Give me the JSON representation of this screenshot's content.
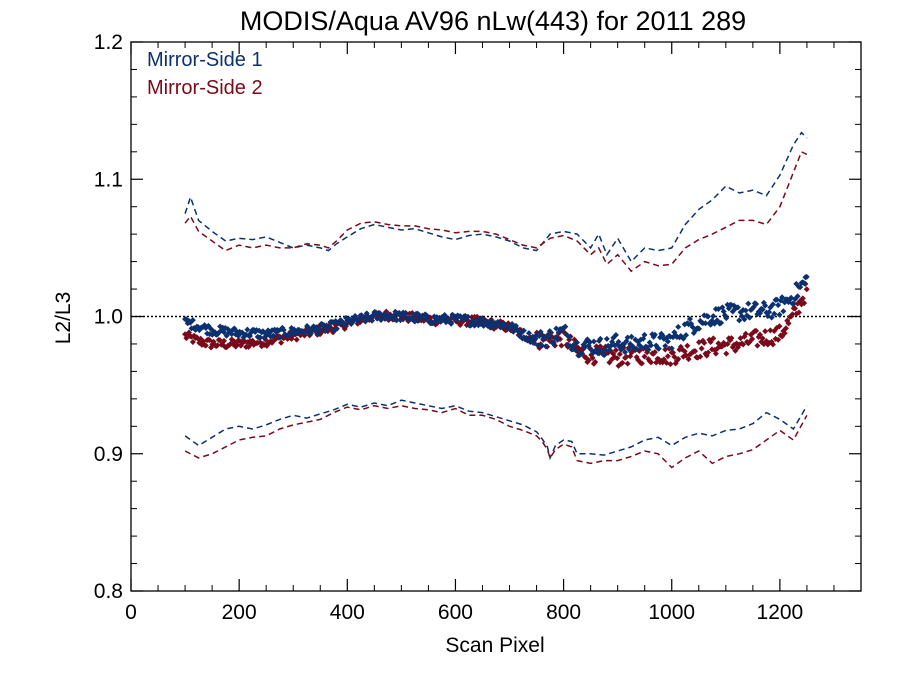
{
  "chart_data": {
    "type": "scatter",
    "title": "MODIS/Aqua AV96 nLw(443) for 2011 289",
    "xlabel": "Scan Pixel",
    "ylabel": "L2/L3",
    "xlim": [
      0,
      1350
    ],
    "ylim": [
      0.8,
      1.2
    ],
    "xticks": [
      "0",
      "200",
      "400",
      "600",
      "800",
      "1000",
      "1200"
    ],
    "xtick_values": [
      0,
      200,
      400,
      600,
      800,
      1000,
      1200
    ],
    "yticks": [
      "0.8",
      "0.9",
      "1.0",
      "1.1",
      "1.2"
    ],
    "ytick_values": [
      0.8,
      0.9,
      1.0,
      1.1,
      1.2
    ],
    "x_minor_step": 50,
    "y_minor_step": 0.02,
    "reference_line": 1.0,
    "legend": {
      "placement": "top-left"
    },
    "series": [
      {
        "name": "Mirror-Side 1",
        "color": "#0b3170",
        "marker": "diamond",
        "x": [
          100,
          125,
          150,
          175,
          200,
          225,
          250,
          275,
          300,
          325,
          350,
          375,
          400,
          425,
          450,
          475,
          500,
          525,
          550,
          575,
          600,
          625,
          650,
          675,
          700,
          725,
          750,
          775,
          800,
          825,
          850,
          875,
          900,
          925,
          950,
          975,
          1000,
          1025,
          1050,
          1075,
          1100,
          1125,
          1150,
          1175,
          1200,
          1225,
          1250
        ],
        "y": [
          0.996,
          0.993,
          0.99,
          0.989,
          0.988,
          0.988,
          0.987,
          0.988,
          0.989,
          0.99,
          0.991,
          0.993,
          0.996,
          0.998,
          1.0,
          1.001,
          1.0,
          0.999,
          0.998,
          0.998,
          0.998,
          0.997,
          0.996,
          0.995,
          0.993,
          0.987,
          0.983,
          0.985,
          0.989,
          0.978,
          0.979,
          0.978,
          0.981,
          0.979,
          0.982,
          0.981,
          0.983,
          0.991,
          0.996,
          1.0,
          1.002,
          1.003,
          1.004,
          1.004,
          1.007,
          1.015,
          1.027
        ],
        "upper_x": [
          100,
          110,
          125,
          150,
          175,
          200,
          225,
          250,
          275,
          300,
          325,
          350,
          365,
          380,
          400,
          425,
          450,
          475,
          500,
          525,
          550,
          575,
          600,
          625,
          650,
          675,
          700,
          725,
          750,
          775,
          800,
          825,
          850,
          865,
          880,
          900,
          925,
          950,
          975,
          1000,
          1025,
          1050,
          1075,
          1100,
          1125,
          1150,
          1175,
          1200,
          1225,
          1240,
          1250
        ],
        "upper_y": [
          1.075,
          1.087,
          1.07,
          1.062,
          1.055,
          1.057,
          1.056,
          1.058,
          1.054,
          1.05,
          1.052,
          1.05,
          1.048,
          1.053,
          1.058,
          1.064,
          1.067,
          1.065,
          1.063,
          1.064,
          1.061,
          1.058,
          1.056,
          1.059,
          1.06,
          1.058,
          1.055,
          1.05,
          1.048,
          1.06,
          1.062,
          1.06,
          1.05,
          1.06,
          1.045,
          1.057,
          1.04,
          1.05,
          1.048,
          1.05,
          1.067,
          1.078,
          1.085,
          1.095,
          1.09,
          1.092,
          1.088,
          1.103,
          1.125,
          1.134,
          1.13
        ],
        "lower_x": [
          100,
          125,
          150,
          175,
          200,
          225,
          250,
          275,
          300,
          325,
          350,
          375,
          400,
          425,
          450,
          475,
          500,
          525,
          550,
          575,
          600,
          625,
          650,
          675,
          700,
          725,
          750,
          760,
          770,
          775,
          785,
          800,
          815,
          825,
          850,
          875,
          900,
          925,
          950,
          975,
          1000,
          1025,
          1050,
          1075,
          1100,
          1125,
          1150,
          1175,
          1200,
          1225,
          1250
        ],
        "lower_y": [
          0.913,
          0.906,
          0.912,
          0.918,
          0.92,
          0.918,
          0.921,
          0.925,
          0.928,
          0.926,
          0.929,
          0.932,
          0.936,
          0.934,
          0.937,
          0.935,
          0.939,
          0.937,
          0.935,
          0.933,
          0.935,
          0.931,
          0.93,
          0.927,
          0.924,
          0.921,
          0.916,
          0.911,
          0.905,
          0.897,
          0.906,
          0.91,
          0.909,
          0.9,
          0.9,
          0.899,
          0.902,
          0.905,
          0.91,
          0.912,
          0.906,
          0.912,
          0.915,
          0.913,
          0.917,
          0.918,
          0.922,
          0.93,
          0.925,
          0.918,
          0.935
        ]
      },
      {
        "name": "Mirror-Side 2",
        "color": "#7a0a1a",
        "marker": "diamond",
        "x": [
          100,
          125,
          150,
          175,
          200,
          225,
          250,
          275,
          300,
          325,
          350,
          375,
          400,
          425,
          450,
          475,
          500,
          525,
          550,
          575,
          600,
          625,
          650,
          675,
          700,
          725,
          750,
          775,
          800,
          825,
          850,
          875,
          900,
          925,
          950,
          975,
          1000,
          1025,
          1050,
          1075,
          1100,
          1125,
          1150,
          1175,
          1200,
          1225,
          1250
        ],
        "y": [
          0.986,
          0.982,
          0.98,
          0.98,
          0.98,
          0.981,
          0.982,
          0.984,
          0.986,
          0.988,
          0.99,
          0.992,
          0.995,
          0.998,
          1.0,
          1.001,
          1.0,
          0.999,
          0.998,
          0.997,
          0.997,
          0.997,
          0.996,
          0.994,
          0.992,
          0.987,
          0.983,
          0.983,
          0.985,
          0.975,
          0.972,
          0.972,
          0.97,
          0.972,
          0.972,
          0.972,
          0.971,
          0.975,
          0.976,
          0.978,
          0.979,
          0.98,
          0.983,
          0.985,
          0.987,
          1.0,
          1.02
        ],
        "upper_x": [
          100,
          110,
          125,
          150,
          175,
          200,
          225,
          250,
          275,
          300,
          325,
          350,
          365,
          380,
          400,
          425,
          450,
          475,
          500,
          525,
          550,
          575,
          600,
          625,
          650,
          675,
          700,
          725,
          750,
          775,
          800,
          825,
          850,
          865,
          880,
          900,
          925,
          950,
          975,
          1000,
          1025,
          1050,
          1075,
          1100,
          1125,
          1150,
          1175,
          1200,
          1225,
          1240,
          1250
        ],
        "upper_y": [
          1.068,
          1.073,
          1.062,
          1.055,
          1.048,
          1.052,
          1.05,
          1.052,
          1.05,
          1.05,
          1.053,
          1.052,
          1.05,
          1.055,
          1.063,
          1.068,
          1.069,
          1.067,
          1.066,
          1.066,
          1.064,
          1.063,
          1.061,
          1.062,
          1.062,
          1.06,
          1.056,
          1.052,
          1.05,
          1.057,
          1.059,
          1.055,
          1.045,
          1.05,
          1.038,
          1.045,
          1.033,
          1.04,
          1.037,
          1.038,
          1.05,
          1.056,
          1.06,
          1.065,
          1.07,
          1.07,
          1.067,
          1.08,
          1.105,
          1.12,
          1.118
        ],
        "lower_x": [
          100,
          125,
          150,
          175,
          200,
          225,
          250,
          275,
          300,
          325,
          350,
          375,
          400,
          425,
          450,
          475,
          500,
          525,
          550,
          575,
          600,
          625,
          650,
          675,
          700,
          725,
          750,
          760,
          770,
          775,
          785,
          800,
          815,
          825,
          850,
          875,
          900,
          925,
          950,
          975,
          1000,
          1025,
          1050,
          1075,
          1100,
          1125,
          1150,
          1175,
          1200,
          1225,
          1250
        ],
        "lower_y": [
          0.902,
          0.897,
          0.9,
          0.905,
          0.91,
          0.912,
          0.913,
          0.918,
          0.921,
          0.923,
          0.925,
          0.93,
          0.934,
          0.932,
          0.935,
          0.933,
          0.935,
          0.933,
          0.932,
          0.93,
          0.933,
          0.928,
          0.928,
          0.925,
          0.92,
          0.917,
          0.913,
          0.909,
          0.903,
          0.897,
          0.903,
          0.907,
          0.905,
          0.895,
          0.893,
          0.895,
          0.895,
          0.898,
          0.902,
          0.9,
          0.89,
          0.897,
          0.902,
          0.893,
          0.898,
          0.9,
          0.903,
          0.91,
          0.917,
          0.91,
          0.928
        ]
      }
    ]
  }
}
